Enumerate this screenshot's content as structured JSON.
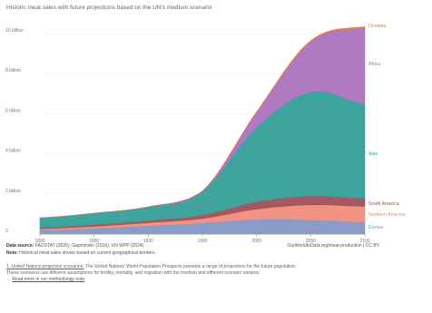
{
  "subtitle": "Historic meat sales with future projections based on the UN's medium scenario",
  "source": {
    "label": "Data source:",
    "text": "FAOSTAT (2025); Gapminder (2016); UN WPP (2024)",
    "right": "OurWorldInData.org/meat-production | CC BY"
  },
  "note": {
    "label": "Note:",
    "text": "Historical meat sales shown based on current geographical borders."
  },
  "footer": {
    "label": "1. United Nations projection scenarios:",
    "text1": "The United Nations' World Population Prospects presents a range of projections for the future population.",
    "text2": "These scenarios use different assumptions for fertility, mortality, and migration with the medium and different scenario variants.",
    "link": "Read more in our methodology note"
  },
  "colors": {
    "Europe": "#7f93c4",
    "Northern America": "#f08a78",
    "South America": "#9c4a54",
    "Asia": "#2f9c96",
    "Africa": "#a86fbd",
    "Oceania": "#e07a4a"
  },
  "chart_data": {
    "type": "area",
    "stacked": true,
    "x": [
      1800,
      1850,
      1900,
      1950,
      2000,
      2050,
      2100
    ],
    "xlim": [
      1800,
      2100
    ],
    "ylim": [
      0,
      10500000000
    ],
    "yticks": [
      0,
      2000000000,
      4000000000,
      6000000000,
      8000000000,
      10000000000
    ],
    "ytick_labels": [
      "0",
      "2 billion",
      "4 billion",
      "6 billion",
      "8 billion",
      "10 billion"
    ],
    "xtick_labels": [
      "1800",
      "1850",
      "1900",
      "1950",
      "2000",
      "2050",
      "2100"
    ],
    "series": [
      {
        "name": "Europe",
        "values": [
          200000000,
          280000000,
          410000000,
          550000000,
          730000000,
          700000000,
          590000000
        ]
      },
      {
        "name": "Northern America",
        "values": [
          70000000,
          110000000,
          160000000,
          230000000,
          520000000,
          760000000,
          800000000
        ]
      },
      {
        "name": "South America",
        "values": [
          40000000,
          70000000,
          90000000,
          160000000,
          350000000,
          430000000,
          390000000
        ]
      },
      {
        "name": "Asia",
        "values": [
          500000000,
          580000000,
          700000000,
          1200000000,
          3700000000,
          5200000000,
          4700000000
        ]
      },
      {
        "name": "Africa",
        "values": [
          0,
          0,
          0,
          0,
          760000000,
          2500000000,
          3800000000
        ]
      },
      {
        "name": "Oceania",
        "values": [
          0,
          0,
          0,
          10000000,
          30000000,
          60000000,
          70000000
        ]
      }
    ]
  }
}
